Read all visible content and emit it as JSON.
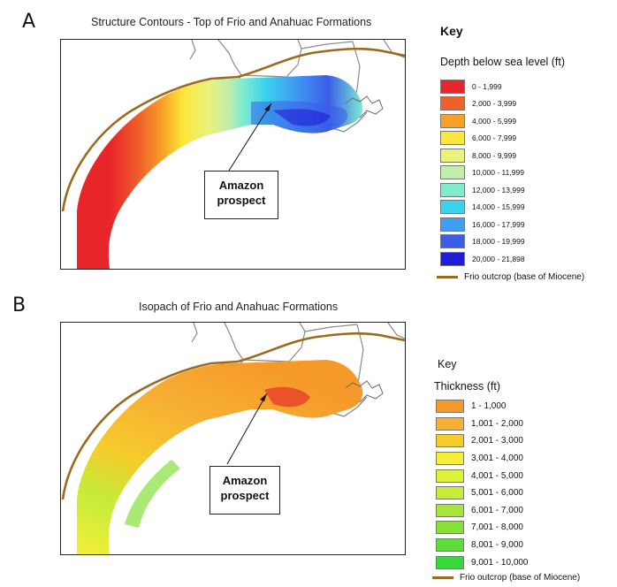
{
  "panel_a": {
    "letter": "A",
    "title": "Structure Contours - Top of Frio and Anahuac Formations",
    "callout": "Amazon prospect",
    "key_title": "Key",
    "key_subtitle": "Depth below sea level (ft)",
    "legend": [
      {
        "label": "0 - 1,999",
        "color": "#e8262a"
      },
      {
        "label": "2,000 - 3,999",
        "color": "#f0612a"
      },
      {
        "label": "4,000 - 5,999",
        "color": "#f7a027"
      },
      {
        "label": "6,000 - 7,999",
        "color": "#fde63a"
      },
      {
        "label": "8,000 - 9,999",
        "color": "#e9f27a"
      },
      {
        "label": "10,000 - 11,999",
        "color": "#c2eea9"
      },
      {
        "label": "12,000 - 13,999",
        "color": "#7fecd0"
      },
      {
        "label": "14,000 - 15,999",
        "color": "#3ad3ee"
      },
      {
        "label": "16,000 - 17,999",
        "color": "#3f9df2"
      },
      {
        "label": "18,000 - 19,999",
        "color": "#3b5de8"
      },
      {
        "label": "20,000 - 21,898",
        "color": "#1f1ed6"
      }
    ],
    "outcrop_label": "Frio outcrop (base of Miocene)"
  },
  "panel_b": {
    "letter": "B",
    "title": "Isopach of Frio and Anahuac Formations",
    "callout": "Amazon prospect",
    "key_title": "Key",
    "key_subtitle": "Thickness (ft)",
    "legend": [
      {
        "label": "1 - 1,000",
        "color": "#f59a2a"
      },
      {
        "label": "1,001 - 2,000",
        "color": "#f7b033"
      },
      {
        "label": "2,001 - 3,000",
        "color": "#f6cb2c"
      },
      {
        "label": "3,001 - 4,000",
        "color": "#f5ef3a"
      },
      {
        "label": "4,001 - 5,000",
        "color": "#def23a"
      },
      {
        "label": "5,001 - 6,000",
        "color": "#c4ec38"
      },
      {
        "label": "6,001 - 7,000",
        "color": "#a5e637"
      },
      {
        "label": "7,001 - 8,000",
        "color": "#86e03a"
      },
      {
        "label": "8,001 - 9,000",
        "color": "#5fdb3c"
      },
      {
        "label": "9,001 - 10,000",
        "color": "#39d83c"
      }
    ],
    "outcrop_label": "Frio outcrop (base of Miocene)"
  },
  "colors": {
    "outcrop": "#9a6a1e",
    "state_border": "#8a8a8a",
    "frame": "#222222"
  }
}
